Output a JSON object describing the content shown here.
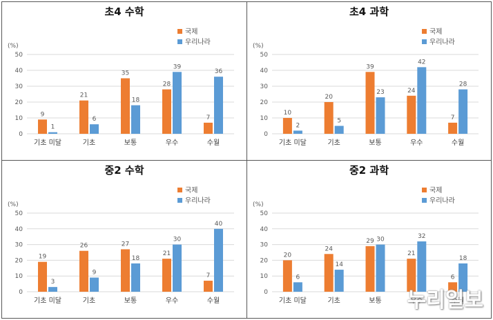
{
  "colors": {
    "international": "#ED7D31",
    "korea": "#5B9BD5",
    "grid": "#d9d9d9",
    "text": "#595959"
  },
  "watermark": "누리일보",
  "chart_data": [
    {
      "type": "bar",
      "title": "초4 수학",
      "ylabel": "(%)",
      "ylim": [
        0,
        50
      ],
      "yticks": [
        0,
        10,
        20,
        30,
        40,
        50
      ],
      "categories": [
        "기초 미달",
        "기초",
        "보통",
        "우수",
        "수월"
      ],
      "series": [
        {
          "name": "국제",
          "values": [
            9,
            21,
            35,
            28,
            7
          ]
        },
        {
          "name": "우리나라",
          "values": [
            1,
            6,
            18,
            39,
            36
          ]
        }
      ],
      "legend": "top-right"
    },
    {
      "type": "bar",
      "title": "초4 과학",
      "ylabel": "(%)",
      "ylim": [
        0,
        50
      ],
      "yticks": [
        0,
        10,
        20,
        30,
        40,
        50
      ],
      "categories": [
        "기초 미달",
        "기초",
        "보통",
        "우수",
        "수월"
      ],
      "series": [
        {
          "name": "국제",
          "values": [
            10,
            20,
            39,
            24,
            7
          ]
        },
        {
          "name": "우리나라",
          "values": [
            2,
            5,
            23,
            42,
            28
          ]
        }
      ],
      "legend": "top-right"
    },
    {
      "type": "bar",
      "title": "중2 수학",
      "ylabel": "(%)",
      "ylim": [
        0,
        50
      ],
      "yticks": [
        0,
        10,
        20,
        30,
        40,
        50
      ],
      "categories": [
        "기초 미달",
        "기초",
        "보통",
        "우수",
        "수월"
      ],
      "series": [
        {
          "name": "국제",
          "values": [
            19,
            26,
            27,
            21,
            7
          ]
        },
        {
          "name": "우리나라",
          "values": [
            3,
            9,
            18,
            30,
            40
          ]
        }
      ],
      "legend": "top-right"
    },
    {
      "type": "bar",
      "title": "중2 과학",
      "ylabel": "(%)",
      "ylim": [
        0,
        50
      ],
      "yticks": [
        0,
        10,
        20,
        30,
        40,
        50
      ],
      "categories": [
        "기초 미달",
        "기초",
        "보통",
        "우수",
        "수월"
      ],
      "series": [
        {
          "name": "국제",
          "values": [
            20,
            24,
            29,
            21,
            6
          ]
        },
        {
          "name": "우리나라",
          "values": [
            6,
            14,
            30,
            32,
            18
          ]
        }
      ],
      "legend": "top-right"
    }
  ]
}
